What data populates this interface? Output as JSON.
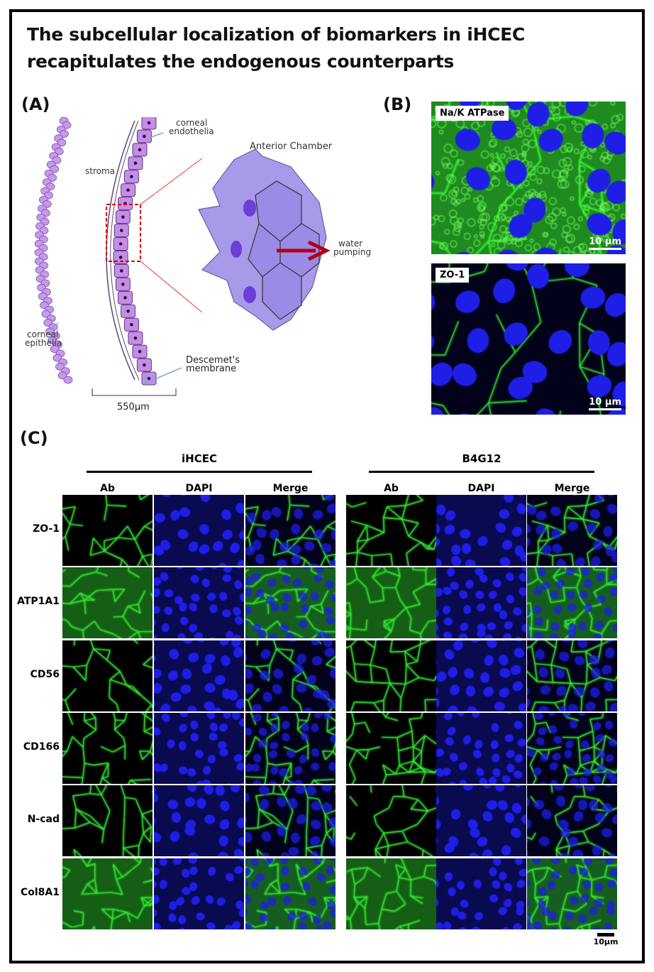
{
  "title": "The subcellular localization of biomarkers in iHCEC recapitulates the endogenous counterparts",
  "panelA": {
    "label": "(A)",
    "corneal_endothelia": [
      "corneal",
      "endothelia"
    ],
    "stroma": "stroma",
    "anterior_chamber": "Anterior Chamber",
    "water_pumping": [
      "water",
      "pumping"
    ],
    "corneal_epithelia": [
      "corneal",
      "epithelia"
    ],
    "descemets": [
      "Descemet's",
      "membrane"
    ],
    "scale": "550µm"
  },
  "panelB": {
    "label": "(B)",
    "images": [
      {
        "tag": "Na/K ATPase",
        "scale": "10 µm",
        "style": "atpase"
      },
      {
        "tag": "ZO-1",
        "scale": "10 µm",
        "style": "zo1"
      }
    ]
  },
  "panelC": {
    "label": "(C)",
    "groups": [
      "iHCEC",
      "B4G12"
    ],
    "columns": [
      "Ab",
      "DAPI",
      "Merge"
    ],
    "rows": [
      "ZO-1",
      "ATP1A1",
      "CD56",
      "CD166",
      "N-cad",
      "Col8A1"
    ],
    "scale": "10µm"
  },
  "colors": {
    "green": "#22c020",
    "blue": "#1a1ae0",
    "purple": "#b98be0",
    "red": "#c00000"
  }
}
